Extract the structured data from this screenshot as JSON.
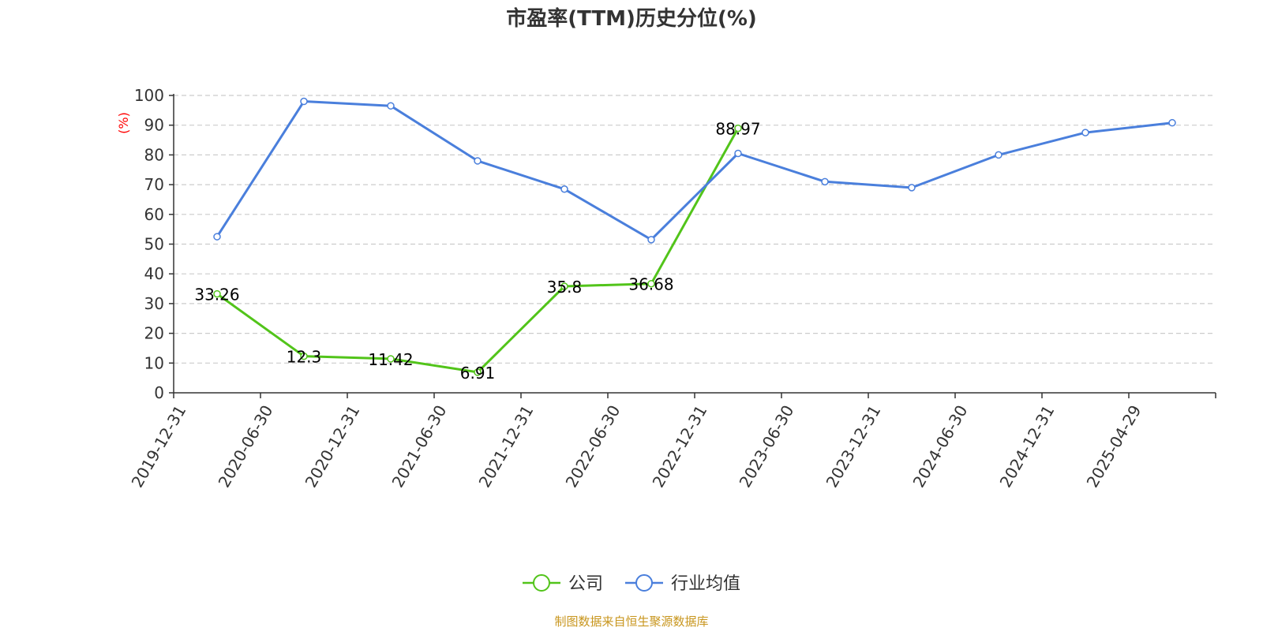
{
  "chart_data": {
    "type": "line",
    "title": "市盈率(TTM)历史分位(%)",
    "ylabel": "(%)",
    "ylim": [
      0,
      100
    ],
    "yticks": [
      "0",
      "10",
      "20",
      "30",
      "40",
      "50",
      "60",
      "70",
      "80",
      "90",
      "100"
    ],
    "categories": [
      "2019-12-31",
      "2020-06-30",
      "2020-12-31",
      "2021-06-30",
      "2021-12-31",
      "2022-06-30",
      "2022-12-31",
      "2023-06-30",
      "2023-12-31",
      "2024-06-30",
      "2024-12-31",
      "2025-04-29"
    ],
    "grid": true,
    "legend_position": "bottom",
    "series": [
      {
        "name": "公司",
        "color": "#52c41a",
        "values": [
          33.26,
          12.3,
          11.42,
          6.91,
          35.8,
          36.68,
          88.97,
          null,
          null,
          null,
          null,
          null
        ],
        "labels": [
          "33.26",
          "12.3",
          "11.42",
          "6.91",
          "35.8",
          "36.68",
          "88.97",
          "",
          "",
          "",
          "",
          ""
        ]
      },
      {
        "name": "行业均值",
        "color": "#4a7fdc",
        "values": [
          52.5,
          98.0,
          96.5,
          78.0,
          68.5,
          51.5,
          80.5,
          71.0,
          69.0,
          80.0,
          87.5,
          90.8
        ],
        "labels": [
          "",
          "",
          "",
          "",
          "",
          "",
          "",
          "",
          "",
          "",
          "",
          ""
        ]
      }
    ]
  },
  "source_text": "制图数据来自恒生聚源数据库"
}
